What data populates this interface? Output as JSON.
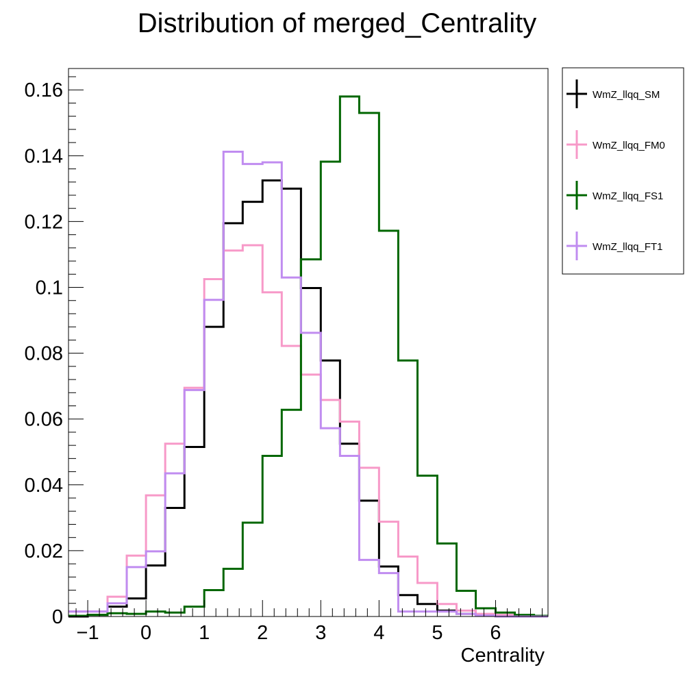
{
  "chart_data": {
    "type": "step-histogram",
    "title": "Distribution of merged_Centrality",
    "xlabel": "Centrality",
    "ylabel": "",
    "xlim": [
      -1.33,
      6.9
    ],
    "ylim": [
      0,
      0.1665
    ],
    "grid": false,
    "legend_position": "right, outside",
    "x_ticks": [
      -1,
      0,
      1,
      2,
      3,
      4,
      5,
      6
    ],
    "x_tick_labels": [
      "−1",
      "0",
      "1",
      "2",
      "3",
      "4",
      "5",
      "6"
    ],
    "y_ticks": [
      0,
      0.02,
      0.04,
      0.06,
      0.08,
      0.1,
      0.12,
      0.14,
      0.16
    ],
    "y_tick_labels": [
      "0",
      "0.02",
      "0.04",
      "0.06",
      "0.08",
      "0.1",
      "0.12",
      "0.14",
      "0.16"
    ],
    "bin_edges": [
      -1.33,
      -1.0,
      -0.66,
      -0.33,
      0.0,
      0.33,
      0.66,
      1.0,
      1.33,
      1.66,
      2.0,
      2.33,
      2.66,
      3.0,
      3.33,
      3.66,
      4.0,
      4.33,
      4.66,
      5.0,
      5.33,
      5.66,
      6.0,
      6.33,
      6.66,
      6.9
    ],
    "series": [
      {
        "name": "WmZ_llqq_SM",
        "color": "#000000",
        "values": [
          0.0,
          0.0005,
          0.003,
          0.0055,
          0.0155,
          0.033,
          0.0515,
          0.088,
          0.1195,
          0.126,
          0.1325,
          0.13,
          0.0998,
          0.0778,
          0.0525,
          0.0352,
          0.0152,
          0.0065,
          0.0038,
          0.0018,
          0.0008,
          0.0003,
          0.0,
          0.0,
          0.0
        ]
      },
      {
        "name": "WmZ_llqq_FM0",
        "color": "#f799c8",
        "values": [
          0.0015,
          0.0015,
          0.006,
          0.0185,
          0.0368,
          0.0525,
          0.0695,
          0.1025,
          0.1112,
          0.1128,
          0.0985,
          0.0822,
          0.0735,
          0.0658,
          0.0592,
          0.0452,
          0.0288,
          0.0182,
          0.0102,
          0.0038,
          0.0018,
          0.0008,
          0.0005,
          0.0003,
          0.0
        ]
      },
      {
        "name": "WmZ_llqq_FS1",
        "color": "#006600",
        "values": [
          0.0002,
          0.0005,
          0.001,
          0.0008,
          0.0015,
          0.0012,
          0.003,
          0.008,
          0.0145,
          0.0285,
          0.0488,
          0.0628,
          0.1085,
          0.1382,
          0.158,
          0.153,
          0.1172,
          0.0778,
          0.0428,
          0.0222,
          0.0078,
          0.0025,
          0.0012,
          0.0005,
          0.0002
        ]
      },
      {
        "name": "WmZ_llqq_FT1",
        "color": "#c08cf0",
        "values": [
          0.0015,
          0.0015,
          0.004,
          0.015,
          0.0198,
          0.0435,
          0.0688,
          0.0962,
          0.1412,
          0.1375,
          0.138,
          0.103,
          0.0862,
          0.0572,
          0.0488,
          0.0172,
          0.0132,
          0.0015,
          0.0015,
          0.0015,
          0.0008,
          0.0003,
          0.0,
          0.0,
          0.0
        ]
      }
    ]
  }
}
